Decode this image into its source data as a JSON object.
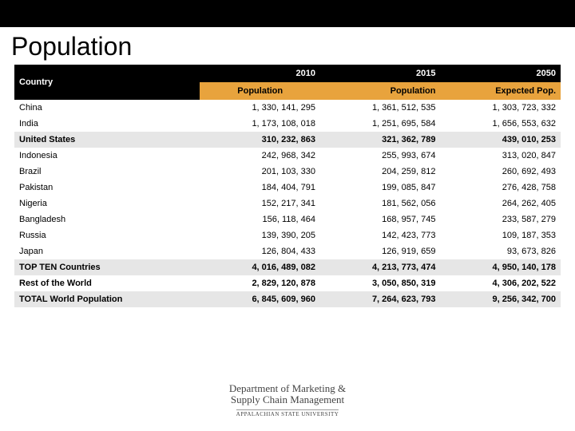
{
  "title": "Population",
  "columns": {
    "country": "Country",
    "y2010": "2010",
    "y2015": "2015",
    "y2050": "2050",
    "pop": "Population",
    "exp": "Expected Pop."
  },
  "rows": [
    {
      "name": "China",
      "v2010": "1, 330, 141, 295",
      "v2015": "1, 361, 512, 535",
      "v2050": "1, 303, 723, 332",
      "bg": "white-row"
    },
    {
      "name": "India",
      "v2010": "1, 173, 108, 018",
      "v2015": "1, 251, 695, 584",
      "v2050": "1, 656, 553, 632",
      "bg": "white-row"
    },
    {
      "name": "United States",
      "v2010": "310, 232, 863",
      "v2015": "321, 362, 789",
      "v2050": "439, 010, 253",
      "bg": "gray-row",
      "bold": true
    },
    {
      "name": "Indonesia",
      "v2010": "242, 968, 342",
      "v2015": "255, 993, 674",
      "v2050": "313, 020, 847",
      "bg": "white-row"
    },
    {
      "name": "Brazil",
      "v2010": "201, 103, 330",
      "v2015": "204, 259, 812",
      "v2050": "260, 692, 493",
      "bg": "white-row"
    },
    {
      "name": "Pakistan",
      "v2010": "184, 404, 791",
      "v2015": "199, 085, 847",
      "v2050": "276, 428, 758",
      "bg": "white-row"
    },
    {
      "name": "Nigeria",
      "v2010": "152, 217, 341",
      "v2015": "181, 562, 056",
      "v2050": "264, 262, 405",
      "bg": "white-row"
    },
    {
      "name": "Bangladesh",
      "v2010": "156, 118, 464",
      "v2015": "168, 957, 745",
      "v2050": "233, 587, 279",
      "bg": "white-row"
    },
    {
      "name": "Russia",
      "v2010": "139, 390, 205",
      "v2015": "142, 423, 773",
      "v2050": "109, 187, 353",
      "bg": "white-row"
    },
    {
      "name": "Japan",
      "v2010": "126, 804, 433",
      "v2015": "126, 919, 659",
      "v2050": "93, 673, 826",
      "bg": "white-row"
    },
    {
      "name": "TOP TEN Countries",
      "v2010": "4, 016, 489, 082",
      "v2015": "4, 213, 773, 474",
      "v2050": "4, 950, 140, 178",
      "bg": "gray-row",
      "bold": true
    },
    {
      "name": "Rest of the World",
      "v2010": "2, 829, 120, 878",
      "v2015": "3, 050, 850, 319",
      "v2050": "4, 306, 202, 522",
      "bg": "white-row",
      "bold": true
    },
    {
      "name": "TOTAL World Population",
      "v2010": "6, 845, 609, 960",
      "v2015": "7, 264, 623, 793",
      "v2050": "9, 256, 342, 700",
      "bg": "gray-row",
      "bold": true
    }
  ],
  "logo": {
    "line1": "Department of Marketing &",
    "line2": "Supply Chain Management",
    "uni": "APPALACHIAN STATE UNIVERSITY"
  },
  "style": {
    "header_bg": "#000000",
    "subheader_bg": "#e8a33d",
    "row_alt_bg": "#e6e6e6",
    "row_bg": "#ffffff",
    "text_color": "#000000"
  }
}
